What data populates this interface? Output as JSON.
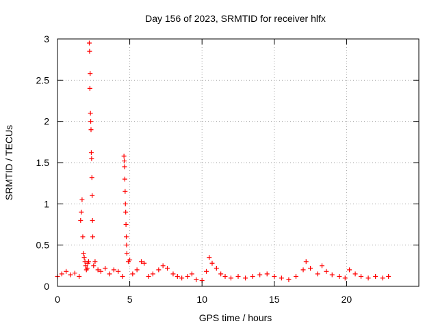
{
  "chart_data": {
    "type": "scatter",
    "title": "Day 156 of 2023, SRMTID for receiver hlfx",
    "xlabel": "GPS time / hours",
    "ylabel": "SRMTID / TECUs",
    "xlim": [
      0,
      25
    ],
    "ylim": [
      0,
      3
    ],
    "x_ticks": [
      0,
      5,
      10,
      15,
      20
    ],
    "x_tick_labels": [
      "0",
      "5",
      "10",
      "15",
      "20"
    ],
    "y_ticks": [
      0,
      0.5,
      1,
      1.5,
      2,
      2.5,
      3
    ],
    "y_tick_labels": [
      "0",
      "0.5",
      "1",
      "1.5",
      "2",
      "2.5",
      "3"
    ],
    "grid": true,
    "marker": "+",
    "series": [
      {
        "name": "SRMTID",
        "color": "#ff0000",
        "x": [
          0.0,
          0.3,
          0.6,
          0.9,
          1.2,
          1.5,
          1.6,
          1.65,
          1.7,
          1.75,
          1.8,
          1.85,
          1.9,
          1.95,
          2.0,
          2.05,
          2.1,
          2.15,
          2.2,
          2.22,
          2.24,
          2.26,
          2.28,
          2.3,
          2.32,
          2.34,
          2.36,
          2.38,
          2.4,
          2.42,
          2.44,
          2.5,
          2.6,
          2.8,
          3.0,
          3.3,
          3.6,
          3.9,
          4.2,
          4.5,
          4.6,
          4.62,
          4.64,
          4.66,
          4.68,
          4.7,
          4.72,
          4.74,
          4.76,
          4.78,
          4.8,
          4.9,
          5.0,
          5.2,
          5.5,
          5.8,
          6.0,
          6.3,
          6.6,
          7.0,
          7.3,
          7.6,
          8.0,
          8.3,
          8.6,
          9.0,
          9.3,
          9.6,
          10.0,
          10.3,
          10.5,
          10.7,
          11.0,
          11.3,
          11.6,
          12.0,
          12.5,
          13.0,
          13.5,
          14.0,
          14.5,
          15.0,
          15.5,
          16.0,
          16.5,
          17.0,
          17.2,
          17.5,
          18.0,
          18.3,
          18.6,
          19.0,
          19.5,
          19.9,
          20.2,
          20.6,
          21.0,
          21.5,
          22.0,
          22.5,
          22.9
        ],
        "y": [
          0.12,
          0.15,
          0.18,
          0.14,
          0.16,
          0.12,
          0.8,
          0.9,
          1.05,
          0.6,
          0.4,
          0.35,
          0.3,
          0.25,
          0.2,
          0.22,
          0.28,
          0.3,
          2.95,
          2.85,
          2.4,
          2.58,
          2.1,
          2.0,
          1.9,
          1.62,
          1.55,
          1.32,
          1.1,
          0.8,
          0.6,
          0.25,
          0.3,
          0.2,
          0.18,
          0.22,
          0.15,
          0.2,
          0.18,
          0.12,
          1.58,
          1.52,
          1.45,
          1.3,
          1.15,
          1.0,
          0.9,
          0.75,
          0.6,
          0.5,
          0.4,
          0.3,
          0.32,
          0.15,
          0.2,
          0.3,
          0.28,
          0.12,
          0.15,
          0.2,
          0.25,
          0.22,
          0.15,
          0.12,
          0.1,
          0.12,
          0.15,
          0.08,
          0.07,
          0.18,
          0.35,
          0.28,
          0.22,
          0.15,
          0.12,
          0.1,
          0.12,
          0.1,
          0.12,
          0.14,
          0.15,
          0.12,
          0.1,
          0.08,
          0.12,
          0.2,
          0.3,
          0.22,
          0.15,
          0.25,
          0.18,
          0.14,
          0.12,
          0.1,
          0.2,
          0.15,
          0.12,
          0.1,
          0.12,
          0.1,
          0.12
        ]
      }
    ]
  }
}
